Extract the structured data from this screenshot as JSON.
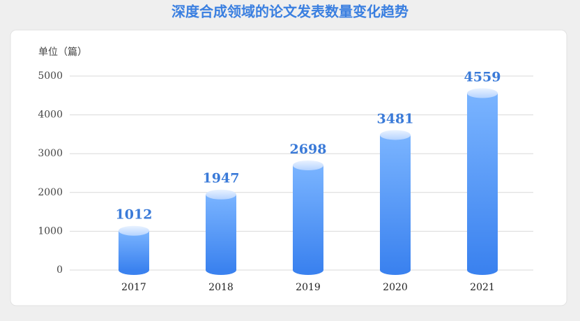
{
  "chart_data": {
    "type": "bar",
    "title": "深度合成领域的论文发表数量变化趋势",
    "y_axis_label": "单位（篇）",
    "categories": [
      "2017",
      "2018",
      "2019",
      "2020",
      "2021"
    ],
    "values": [
      1012,
      1947,
      2698,
      3481,
      4559
    ],
    "color": "#5e9cf2",
    "ylim": [
      0,
      5000
    ],
    "yticks": [
      0,
      1000,
      2000,
      3000,
      4000,
      5000
    ],
    "grid": true
  }
}
